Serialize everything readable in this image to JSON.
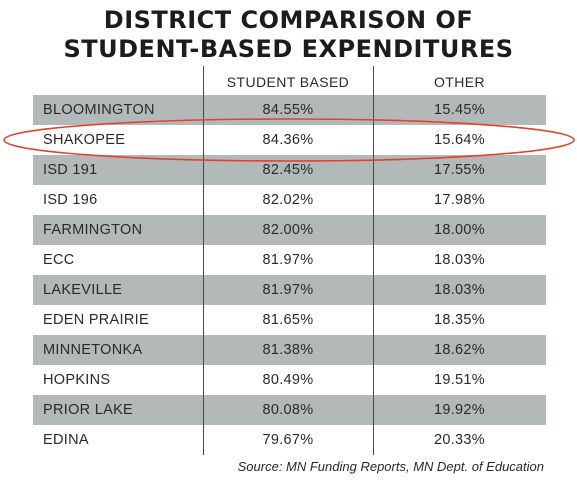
{
  "chart_data": {
    "type": "table",
    "title_line1": "DISTRICT COMPARISON OF",
    "title_line2": "STUDENT-BASED EXPENDITURES",
    "columns": [
      "",
      "STUDENT BASED",
      "OTHER"
    ],
    "rows": [
      {
        "district": "BLOOMINGTON",
        "student_based": "84.55%",
        "other": "15.45%"
      },
      {
        "district": "SHAKOPEE",
        "student_based": "84.36%",
        "other": "15.64%"
      },
      {
        "district": "ISD 191",
        "student_based": "82.45%",
        "other": "17.55%"
      },
      {
        "district": "ISD 196",
        "student_based": "82.02%",
        "other": "17.98%"
      },
      {
        "district": "FARMINGTON",
        "student_based": "82.00%",
        "other": "18.00%"
      },
      {
        "district": "ECC",
        "student_based": "81.97%",
        "other": "18.03%"
      },
      {
        "district": "LAKEVILLE",
        "student_based": "81.97%",
        "other": "18.03%"
      },
      {
        "district": "EDEN PRAIRIE",
        "student_based": "81.65%",
        "other": "18.35%"
      },
      {
        "district": "MINNETONKA",
        "student_based": "81.38%",
        "other": "18.62%"
      },
      {
        "district": "HOPKINS",
        "student_based": "80.49%",
        "other": "19.51%"
      },
      {
        "district": "PRIOR LAKE",
        "student_based": "80.08%",
        "other": "19.92%"
      },
      {
        "district": "EDINA",
        "student_based": "79.67%",
        "other": "20.33%"
      }
    ],
    "highlighted_row": "SHAKOPEE",
    "source": "Source: MN Funding Reports, MN Dept. of Education"
  },
  "colors": {
    "row_shade": "#b3b9b8",
    "highlight": "#e0432f",
    "text": "#2a2a2a"
  }
}
